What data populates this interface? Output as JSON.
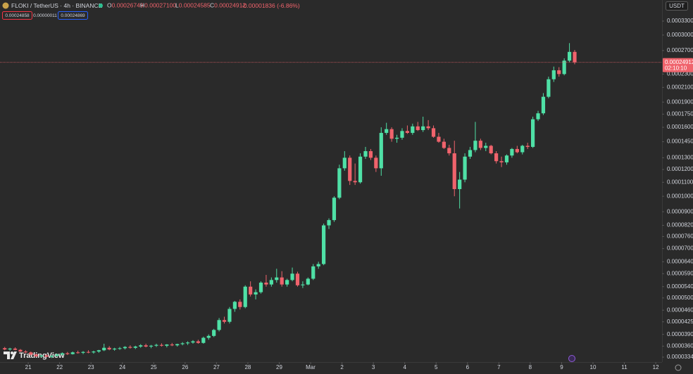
{
  "chart_data": {
    "type": "candlestick",
    "title": "FLOKI / TetherUS · 4h · BINANCE",
    "ohlc_labels": [
      {
        "key": "O",
        "value": "0.00026749"
      },
      {
        "key": "H",
        "value": "0.00027100"
      },
      {
        "key": "L",
        "value": "0.00024585"
      },
      {
        "key": "C",
        "value": "0.00024912"
      }
    ],
    "change": "-0.00001836 (-6.86%)",
    "bid": "0.00024858",
    "spread": "0.00000011",
    "ask": "0.00024869",
    "currency": "USDT",
    "countdown": "02:10:10",
    "watermark": "TradingView",
    "up_color": "#4fe0a6",
    "down_color": "#f0636c",
    "log_scale": true,
    "grid": false,
    "xlim": [
      -0.9,
      125.7
    ],
    "xticks": [
      {
        "value": 4.5,
        "label": "21"
      },
      {
        "value": 10.5,
        "label": "22"
      },
      {
        "value": 16.5,
        "label": "23"
      },
      {
        "value": 22.5,
        "label": "24"
      },
      {
        "value": 28.5,
        "label": "25"
      },
      {
        "value": 34.5,
        "label": "26"
      },
      {
        "value": 40.5,
        "label": "27"
      },
      {
        "value": 46.5,
        "label": "28"
      },
      {
        "value": 52.5,
        "label": "29"
      },
      {
        "value": 58.5,
        "label": "Mar"
      },
      {
        "value": 64.5,
        "label": "2"
      },
      {
        "value": 70.5,
        "label": "3"
      },
      {
        "value": 76.5,
        "label": "4"
      },
      {
        "value": 82.5,
        "label": "5"
      },
      {
        "value": 88.5,
        "label": "6"
      },
      {
        "value": 94.5,
        "label": "7"
      },
      {
        "value": 100.5,
        "label": "8"
      },
      {
        "value": 106.5,
        "label": "9"
      },
      {
        "value": 112.5,
        "label": "10"
      },
      {
        "value": 118.5,
        "label": "11"
      },
      {
        "value": 124.5,
        "label": "12"
      }
    ],
    "ylim": [
      3.23e-05,
      0.000381
    ],
    "yticks": [
      {
        "value": 0.00033,
        "label": "0.00033000"
      },
      {
        "value": 0.0003,
        "label": "0.00030000"
      },
      {
        "value": 0.00027,
        "label": "0.00027000"
      },
      {
        "value": 0.00023,
        "label": "0.00023000"
      },
      {
        "value": 0.00021,
        "label": "0.00021000"
      },
      {
        "value": 0.00019,
        "label": "0.00019000"
      },
      {
        "value": 0.000175,
        "label": "0.00017500"
      },
      {
        "value": 0.00016,
        "label": "0.00016000"
      },
      {
        "value": 0.000145,
        "label": "0.00014500"
      },
      {
        "value": 0.00013,
        "label": "0.00013000"
      },
      {
        "value": 0.00012,
        "label": "0.00012000"
      },
      {
        "value": 0.00011,
        "label": "0.00011000"
      },
      {
        "value": 0.0001,
        "label": "0.00010000"
      },
      {
        "value": 9e-05,
        "label": "0.00009000"
      },
      {
        "value": 8.2e-05,
        "label": "0.00008200"
      },
      {
        "value": 7.6e-05,
        "label": "0.00007600"
      },
      {
        "value": 7e-05,
        "label": "0.00007000"
      },
      {
        "value": 6.4e-05,
        "label": "0.00006400"
      },
      {
        "value": 5.9e-05,
        "label": "0.00005900"
      },
      {
        "value": 5.4e-05,
        "label": "0.00005400"
      },
      {
        "value": 5e-05,
        "label": "0.00005000"
      },
      {
        "value": 4.6e-05,
        "label": "0.00004600"
      },
      {
        "value": 4.25e-05,
        "label": "0.00004250"
      },
      {
        "value": 3.9e-05,
        "label": "0.00003900"
      },
      {
        "value": 3.6e-05,
        "label": "0.00003600"
      },
      {
        "value": 3.34e-05,
        "label": "0.00003340"
      }
    ],
    "open": [
      3.55e-05,
      3.52e-05,
      3.54e-05,
      3.51e-05,
      3.47e-05,
      3.45e-05,
      3.4e-05,
      3.36e-05,
      3.38e-05,
      3.35e-05,
      3.37e-05,
      3.4e-05,
      3.43e-05,
      3.41e-05,
      3.45e-05,
      3.44e-05,
      3.46e-05,
      3.45e-05,
      3.47e-05,
      3.5e-05,
      3.56e-05,
      3.52e-05,
      3.54e-05,
      3.55e-05,
      3.58e-05,
      3.56e-05,
      3.59e-05,
      3.62e-05,
      3.59e-05,
      3.61e-05,
      3.63e-05,
      3.61e-05,
      3.64e-05,
      3.62e-05,
      3.65e-05,
      3.67e-05,
      3.69e-05,
      3.72e-05,
      3.68e-05,
      3.81e-05,
      3.86e-05,
      4.02e-05,
      4.3e-05,
      4.25e-05,
      4.64e-05,
      4.87e-05,
      4.7e-05,
      5.4e-05,
      5.12e-05,
      5.2e-05,
      5.55e-05,
      5.48e-05,
      5.65e-05,
      5.75e-05,
      5.48e-05,
      5.65e-05,
      5.9e-05,
      5.45e-05,
      5.48e-05,
      5.7e-05,
      6.2e-05,
      6.3e-05,
      8.2e-05,
      8.5e-05,
      9.9e-05,
      0.000121,
      0.00013,
      0.000111,
      0.00011,
      0.000131,
      0.000136,
      0.00013,
      0.000121,
      0.000154,
      0.000158,
      0.000148,
      0.000149,
      0.000156,
      0.000154,
      0.000161,
      0.000157,
      0.000161,
      0.000159,
      0.00015,
      0.000145,
      0.000139,
      0.000134,
      0.000105,
      0.000112,
      0.000131,
      0.000137,
      0.000146,
      0.000139,
      0.000141,
      0.000134,
      0.000127,
      0.000126,
      0.000132,
      0.000138,
      0.000135,
      0.000141,
      0.00014,
      0.000169,
      0.000176,
      0.000197,
      0.000222,
      0.000236,
      0.00023,
      0.000252,
      0.00026749
    ],
    "high": [
      3.58e-05,
      3.56e-05,
      3.57e-05,
      3.53e-05,
      3.5e-05,
      3.47e-05,
      3.42e-05,
      3.39e-05,
      3.4e-05,
      3.38e-05,
      3.42e-05,
      3.45e-05,
      3.46e-05,
      3.47e-05,
      3.49e-05,
      3.48e-05,
      3.5e-05,
      3.49e-05,
      3.51e-05,
      3.66e-05,
      3.6e-05,
      3.56e-05,
      3.58e-05,
      3.6e-05,
      3.62e-05,
      3.61e-05,
      3.65e-05,
      3.66e-05,
      3.63e-05,
      3.66e-05,
      3.67e-05,
      3.65e-05,
      3.68e-05,
      3.66e-05,
      3.7e-05,
      3.72e-05,
      3.75e-05,
      3.76e-05,
      3.84e-05,
      3.9e-05,
      4.05e-05,
      4.36e-05,
      4.4e-05,
      4.7e-05,
      4.9e-05,
      4.95e-05,
      5.45e-05,
      5.6e-05,
      5.3e-05,
      5.6e-05,
      5.85e-05,
      5.75e-05,
      6.1e-05,
      6e-05,
      5.7e-05,
      6.15e-05,
      5.98e-05,
      5.6e-05,
      5.75e-05,
      6.3e-05,
      6.4e-05,
      8.3e-05,
      8.6e-05,
      0.0001,
      0.000124,
      0.000136,
      0.000132,
      0.000125,
      0.000134,
      0.00014,
      0.000138,
      0.000132,
      0.00016,
      0.000165,
      0.00016,
      0.000152,
      0.000159,
      0.000162,
      0.000164,
      0.000166,
      0.000172,
      0.000168,
      0.000162,
      0.000154,
      0.000148,
      0.000142,
      0.000146,
      0.000118,
      0.000134,
      0.00014,
      0.000166,
      0.000148,
      0.000144,
      0.000142,
      0.000136,
      0.000131,
      0.000133,
      0.000139,
      0.000141,
      0.000142,
      0.000144,
      0.000172,
      0.000179,
      0.000202,
      0.000226,
      0.000242,
      0.000241,
      0.000256,
      0.000284,
      0.000271
    ],
    "low": [
      3.5e-05,
      3.49e-05,
      3.5e-05,
      3.46e-05,
      3.43e-05,
      3.38e-05,
      3.34e-05,
      3.33e-05,
      3.34e-05,
      3.32e-05,
      3.35e-05,
      3.38e-05,
      3.39e-05,
      3.4e-05,
      3.42e-05,
      3.41e-05,
      3.43e-05,
      3.42e-05,
      3.44e-05,
      3.48e-05,
      3.5e-05,
      3.49e-05,
      3.51e-05,
      3.52e-05,
      3.54e-05,
      3.53e-05,
      3.56e-05,
      3.57e-05,
      3.55e-05,
      3.58e-05,
      3.59e-05,
      3.57e-05,
      3.6e-05,
      3.59e-05,
      3.62e-05,
      3.63e-05,
      3.66e-05,
      3.66e-05,
      3.66e-05,
      3.76e-05,
      3.83e-05,
      3.98e-05,
      4.2e-05,
      4.2e-05,
      4.55e-05,
      4.62e-05,
      4.66e-05,
      5.05e-05,
      4.95e-05,
      5.15e-05,
      5.4e-05,
      5.4e-05,
      5.55e-05,
      5.4e-05,
      5.4e-05,
      5.6e-05,
      5.4e-05,
      5.35e-05,
      5.45e-05,
      5.65e-05,
      6.1e-05,
      6.25e-05,
      8e-05,
      8.4e-05,
      9.8e-05,
      0.000119,
      0.000108,
      0.000108,
      0.000109,
      0.000129,
      0.000128,
      0.000118,
      0.000115,
      0.000152,
      0.000145,
      0.000144,
      0.000147,
      0.000153,
      0.000152,
      0.000156,
      0.000155,
      0.000157,
      0.000149,
      0.000144,
      0.000138,
      0.000132,
      0.0001,
      9.2e-05,
      0.00011,
      0.000129,
      0.000135,
      0.000137,
      0.000136,
      0.000133,
      0.000125,
      0.000122,
      0.000124,
      0.00013,
      0.000134,
      0.000133,
      0.000138,
      0.000139,
      0.000167,
      0.000174,
      0.000195,
      0.000218,
      0.000226,
      0.000228,
      0.000249,
      0.00024585
    ],
    "close": [
      3.52e-05,
      3.54e-05,
      3.51e-05,
      3.47e-05,
      3.45e-05,
      3.4e-05,
      3.36e-05,
      3.38e-05,
      3.35e-05,
      3.37e-05,
      3.4e-05,
      3.43e-05,
      3.41e-05,
      3.45e-05,
      3.44e-05,
      3.46e-05,
      3.45e-05,
      3.47e-05,
      3.5e-05,
      3.56e-05,
      3.52e-05,
      3.54e-05,
      3.55e-05,
      3.58e-05,
      3.56e-05,
      3.59e-05,
      3.62e-05,
      3.59e-05,
      3.61e-05,
      3.63e-05,
      3.61e-05,
      3.64e-05,
      3.62e-05,
      3.65e-05,
      3.67e-05,
      3.69e-05,
      3.72e-05,
      3.68e-05,
      3.81e-05,
      3.86e-05,
      4.02e-05,
      4.3e-05,
      4.25e-05,
      4.64e-05,
      4.87e-05,
      4.7e-05,
      5.4e-05,
      5.12e-05,
      5.2e-05,
      5.55e-05,
      5.48e-05,
      5.65e-05,
      5.75e-05,
      5.48e-05,
      5.65e-05,
      5.9e-05,
      5.45e-05,
      5.48e-05,
      5.7e-05,
      6.2e-05,
      6.3e-05,
      8.2e-05,
      8.5e-05,
      9.9e-05,
      0.000121,
      0.00013,
      0.000111,
      0.00011,
      0.000131,
      0.000136,
      0.00013,
      0.000121,
      0.000154,
      0.000158,
      0.000148,
      0.000149,
      0.000156,
      0.000154,
      0.000161,
      0.000157,
      0.000161,
      0.000159,
      0.00015,
      0.000145,
      0.000139,
      0.000134,
      0.000105,
      0.000112,
      0.000131,
      0.000137,
      0.000146,
      0.000139,
      0.000141,
      0.000134,
      0.000127,
      0.000126,
      0.000132,
      0.000138,
      0.000135,
      0.000141,
      0.00014,
      0.000169,
      0.000176,
      0.000197,
      0.000222,
      0.000236,
      0.00023,
      0.000252,
      0.00026749,
      0.00024912
    ]
  }
}
